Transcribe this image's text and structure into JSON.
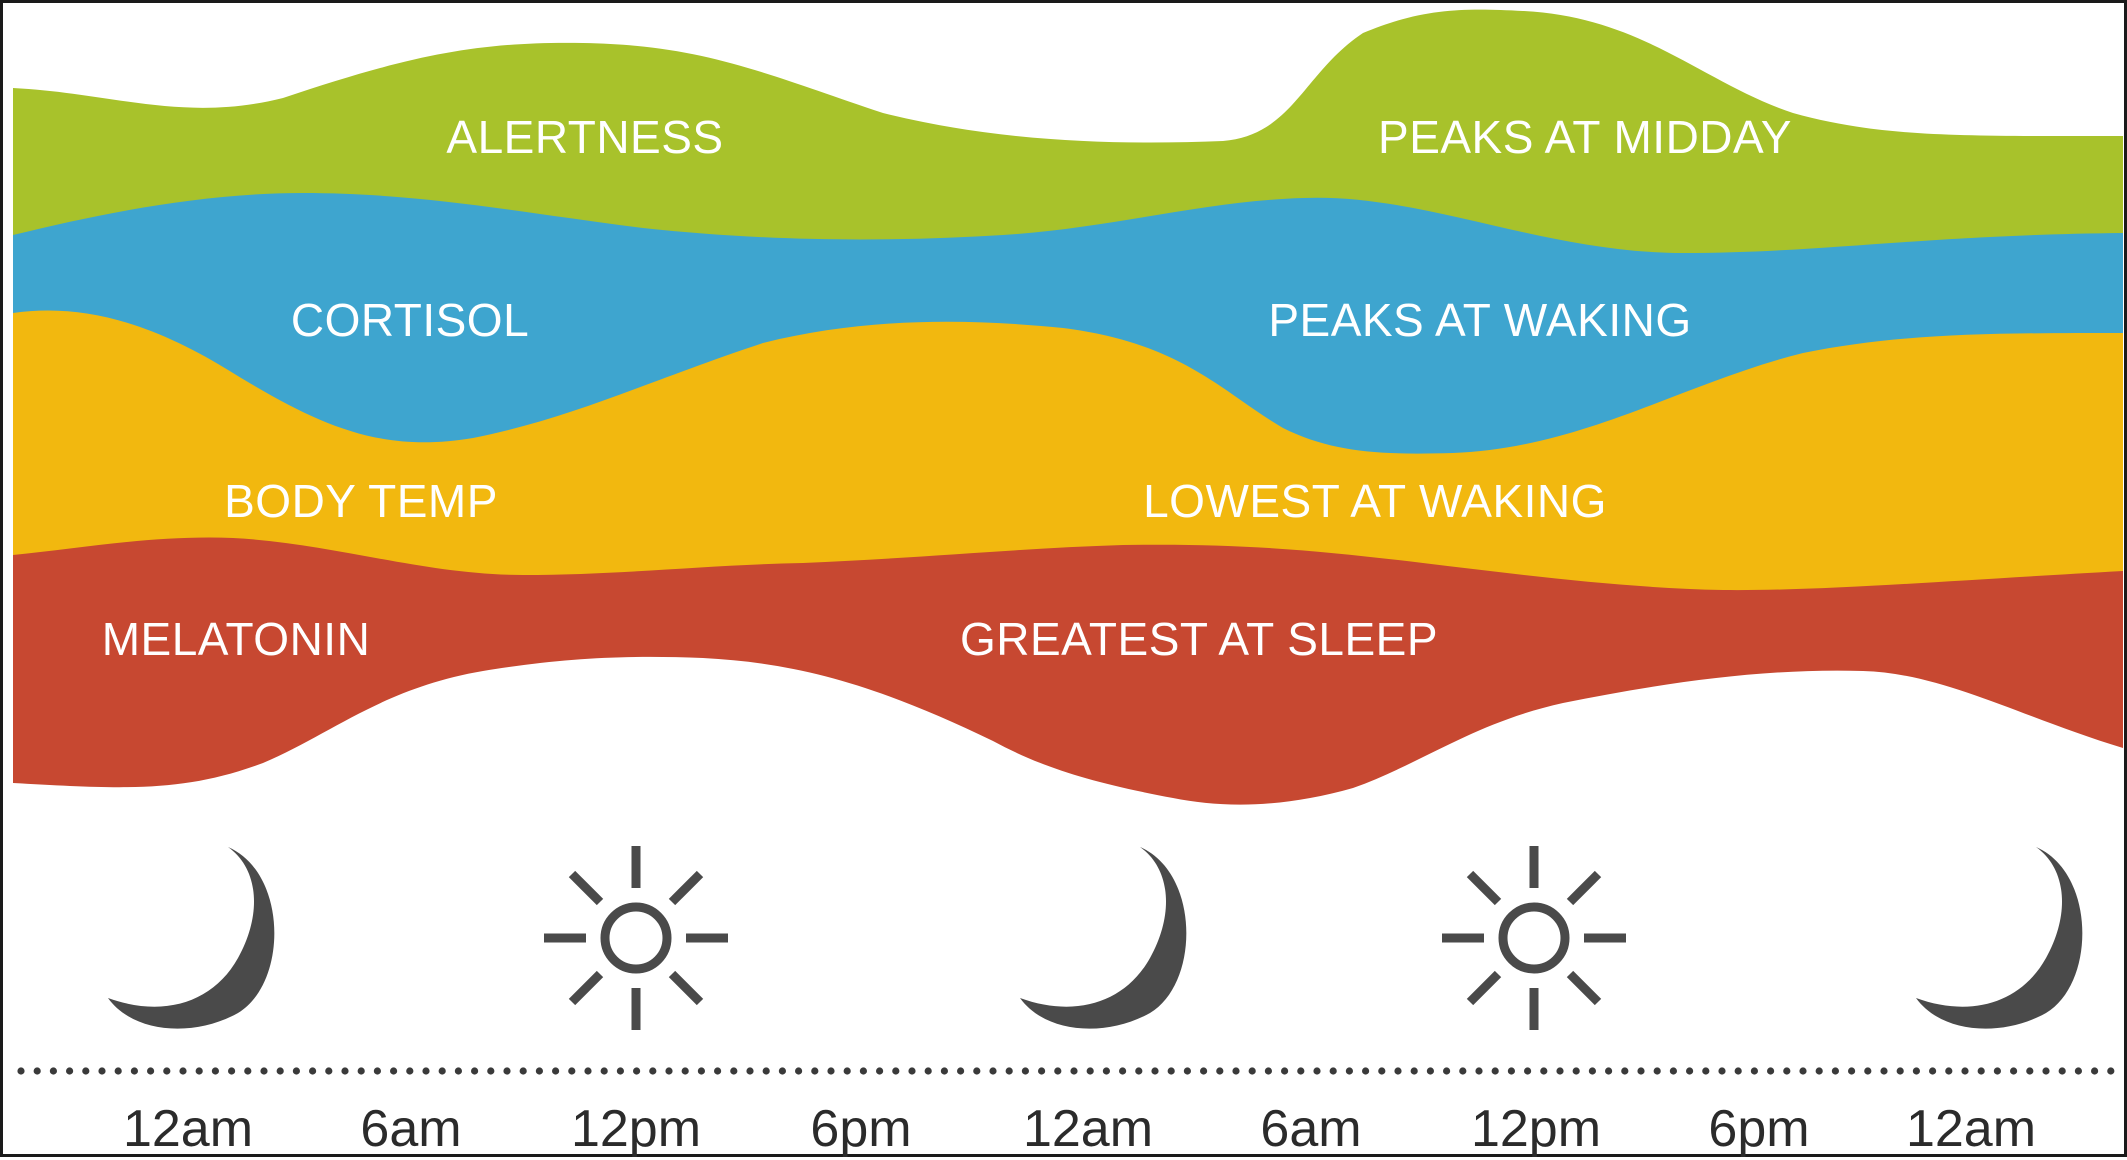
{
  "colors": {
    "alertness": "#a8c22b",
    "cortisol": "#3ea5cf",
    "body_temp": "#f2b80f",
    "melatonin": "#c74831",
    "icons": "#4a4a4a",
    "background": "#ffffff"
  },
  "bands": [
    {
      "name": "ALERTNESS",
      "description": "PEAKS AT MIDDAY"
    },
    {
      "name": "CORTISOL",
      "description": "PEAKS AT WAKING"
    },
    {
      "name": "BODY TEMP",
      "description": "LOWEST AT WAKING"
    },
    {
      "name": "MELATONIN",
      "description": "GREATEST AT SLEEP"
    }
  ],
  "timeline": {
    "icons": [
      "moon-icon",
      "sun-icon",
      "moon-icon",
      "sun-icon",
      "moon-icon"
    ],
    "labels": [
      "12am",
      "6am",
      "12pm",
      "6pm",
      "12am",
      "6am",
      "12pm",
      "6pm",
      "12am"
    ]
  }
}
